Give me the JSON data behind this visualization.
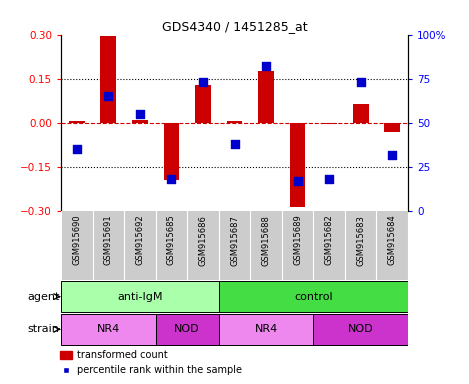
{
  "title": "GDS4340 / 1451285_at",
  "samples": [
    "GSM915690",
    "GSM915691",
    "GSM915692",
    "GSM915685",
    "GSM915686",
    "GSM915687",
    "GSM915688",
    "GSM915689",
    "GSM915682",
    "GSM915683",
    "GSM915684"
  ],
  "transformed_count": [
    0.005,
    0.295,
    0.01,
    -0.195,
    0.13,
    0.005,
    0.175,
    -0.285,
    -0.005,
    0.065,
    -0.03
  ],
  "percentile_rank": [
    35,
    65,
    55,
    18,
    73,
    38,
    82,
    17,
    18,
    73,
    32
  ],
  "bar_color": "#cc0000",
  "dot_color": "#0000cc",
  "ylim_left": [
    -0.3,
    0.3
  ],
  "ylim_right": [
    0,
    100
  ],
  "yticks_left": [
    -0.3,
    -0.15,
    0.0,
    0.15,
    0.3
  ],
  "yticks_right": [
    0,
    25,
    50,
    75,
    100
  ],
  "hline_dotted": [
    0.15,
    -0.15
  ],
  "hline_zero_color": "#cc0000",
  "bar_width": 0.5,
  "dot_size": 35,
  "agent_groups": [
    {
      "label": "anti-IgM",
      "start": 0,
      "end": 5,
      "color": "#aaffaa"
    },
    {
      "label": "control",
      "start": 5,
      "end": 11,
      "color": "#44dd44"
    }
  ],
  "strain_groups": [
    {
      "label": "NR4",
      "start": 0,
      "end": 3,
      "color": "#ee88ee"
    },
    {
      "label": "NOD",
      "start": 3,
      "end": 5,
      "color": "#cc33cc"
    },
    {
      "label": "NR4",
      "start": 5,
      "end": 8,
      "color": "#ee88ee"
    },
    {
      "label": "NOD",
      "start": 8,
      "end": 11,
      "color": "#cc33cc"
    }
  ],
  "agent_label": "agent",
  "strain_label": "strain",
  "xtick_bg": "#cccccc",
  "legend_items": [
    {
      "color": "#cc0000",
      "label": "transformed count"
    },
    {
      "color": "#0000cc",
      "label": "percentile rank within the sample"
    }
  ]
}
